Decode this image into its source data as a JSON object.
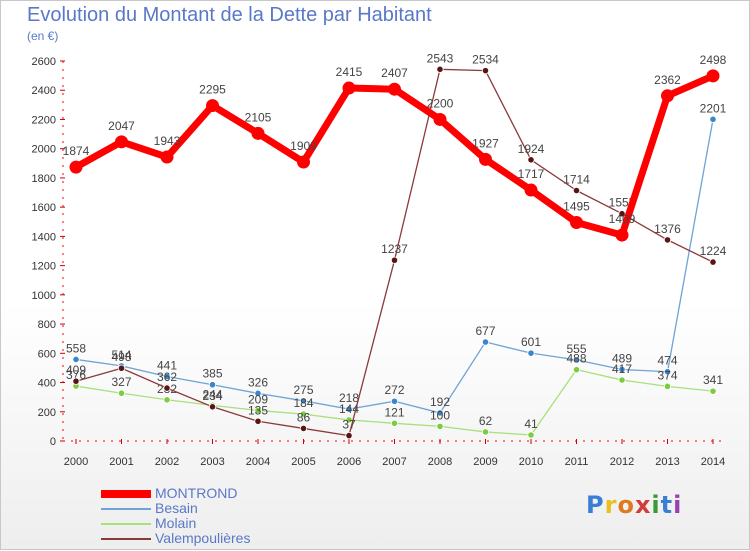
{
  "chart_data": {
    "type": "line",
    "title": "Evolution du Montant de la Dette par Habitant",
    "subtitle": "(en €)",
    "categories": [
      "2000",
      "2001",
      "2002",
      "2003",
      "2004",
      "2005",
      "2006",
      "2007",
      "2008",
      "2009",
      "2010",
      "2011",
      "2012",
      "2013",
      "2014"
    ],
    "ylim": [
      0,
      2600
    ],
    "yticks": [
      0,
      200,
      400,
      600,
      800,
      1000,
      1200,
      1400,
      1600,
      1800,
      2000,
      2200,
      2400,
      2600
    ],
    "grid": false,
    "legend_position": "bottom-left",
    "series": [
      {
        "name": "MONTROND",
        "color": "#ff0000",
        "marker_color": "#ff0000",
        "values": [
          1874,
          2047,
          1943,
          2295,
          2105,
          1909,
          2415,
          2407,
          2200,
          1927,
          1717,
          1495,
          1409,
          2362,
          2498
        ]
      },
      {
        "name": "Besain",
        "color": "#6fa3d6",
        "marker_color": "#3a85cc",
        "values": [
          558,
          514,
          441,
          385,
          326,
          275,
          218,
          272,
          192,
          677,
          601,
          555,
          489,
          474,
          2201
        ]
      },
      {
        "name": "Molain",
        "color": "#a8e07a",
        "marker_color": "#7ccc40",
        "values": [
          376,
          327,
          282,
          244,
          209,
          184,
          144,
          121,
          100,
          62,
          41,
          488,
          417,
          374,
          341
        ]
      },
      {
        "name": "Valempoulières",
        "color": "#8b3a3a",
        "marker_color": "#5a1414",
        "values": [
          409,
          498,
          362,
          234,
          135,
          86,
          37,
          1237,
          2543,
          2534,
          1924,
          1714,
          1555,
          1376,
          1224
        ]
      }
    ]
  },
  "logo": {
    "letters": [
      "P",
      "r",
      "o",
      "x",
      "i",
      "t",
      "i"
    ]
  }
}
